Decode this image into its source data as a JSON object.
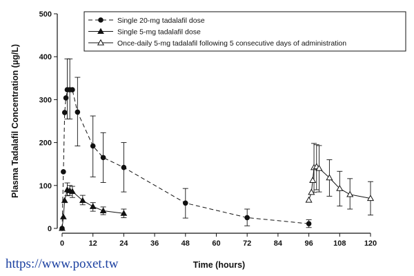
{
  "chart_data": {
    "type": "line",
    "title": "",
    "xlabel": "Time (hours)",
    "ylabel": "Plasma Tadalafil Concentration (µg/L)",
    "xlim": [
      0,
      120
    ],
    "ylim": [
      0,
      500
    ],
    "xticks": [
      0,
      12,
      24,
      36,
      48,
      60,
      72,
      84,
      96,
      108,
      120
    ],
    "yticks": [
      0,
      100,
      200,
      300,
      400,
      500
    ],
    "legend_position": "top-right",
    "series": [
      {
        "name": "Single 20-mg tadalafil dose",
        "marker": "filled-circle",
        "line": "dashed",
        "points": [
          {
            "x": 0,
            "y": 0
          },
          {
            "x": 0.5,
            "y": 132
          },
          {
            "x": 1,
            "y": 270
          },
          {
            "x": 1.5,
            "y": 304
          },
          {
            "x": 2,
            "y": 323,
            "lo": 255,
            "hi": 395
          },
          {
            "x": 3,
            "y": 323,
            "lo": 255,
            "hi": 395
          },
          {
            "x": 4,
            "y": 323
          },
          {
            "x": 6,
            "y": 271,
            "lo": 192,
            "hi": 352
          },
          {
            "x": 12,
            "y": 192,
            "lo": 120,
            "hi": 262
          },
          {
            "x": 16,
            "y": 165,
            "lo": 107,
            "hi": 223
          },
          {
            "x": 24,
            "y": 142,
            "lo": 85,
            "hi": 200
          },
          {
            "x": 48,
            "y": 59,
            "lo": 24,
            "hi": 93
          },
          {
            "x": 72,
            "y": 25,
            "lo": 6,
            "hi": 45
          },
          {
            "x": 96,
            "y": 11,
            "lo": 2,
            "hi": 20
          }
        ]
      },
      {
        "name": "Single 5-mg tadalafil dose",
        "marker": "filled-triangle",
        "line": "solid",
        "points": [
          {
            "x": 0,
            "y": 0
          },
          {
            "x": 0.5,
            "y": 27
          },
          {
            "x": 1,
            "y": 65
          },
          {
            "x": 2,
            "y": 90,
            "lo": 76,
            "hi": 106
          },
          {
            "x": 3,
            "y": 88,
            "lo": 77,
            "hi": 100
          },
          {
            "x": 4,
            "y": 86,
            "lo": 72,
            "hi": 98
          },
          {
            "x": 8,
            "y": 65,
            "lo": 55,
            "hi": 77
          },
          {
            "x": 12,
            "y": 51,
            "lo": 40,
            "hi": 60
          },
          {
            "x": 16,
            "y": 41,
            "lo": 32,
            "hi": 50
          },
          {
            "x": 24,
            "y": 35,
            "lo": 25,
            "hi": 45
          }
        ]
      },
      {
        "name": "Once-daily 5-mg tadalafil following 5 consecutive days of administration",
        "marker": "open-triangle",
        "line": "solid",
        "points": [
          {
            "x": 96,
            "y": 66
          },
          {
            "x": 97,
            "y": 84
          },
          {
            "x": 97.5,
            "y": 112
          },
          {
            "x": 98,
            "y": 142,
            "lo": 84,
            "hi": 198
          },
          {
            "x": 99,
            "y": 144,
            "lo": 90,
            "hi": 195
          },
          {
            "x": 100,
            "y": 140,
            "lo": 85,
            "hi": 193
          },
          {
            "x": 104,
            "y": 118,
            "lo": 75,
            "hi": 160
          },
          {
            "x": 108,
            "y": 93,
            "lo": 52,
            "hi": 133
          },
          {
            "x": 112,
            "y": 79,
            "lo": 45,
            "hi": 116
          },
          {
            "x": 120,
            "y": 70,
            "lo": 31,
            "hi": 109
          }
        ]
      }
    ]
  },
  "watermark": "https://www.poxet.tw",
  "colors": {
    "ink": "#111111",
    "watermark": "#1a3fa0",
    "background": "#ffffff"
  }
}
